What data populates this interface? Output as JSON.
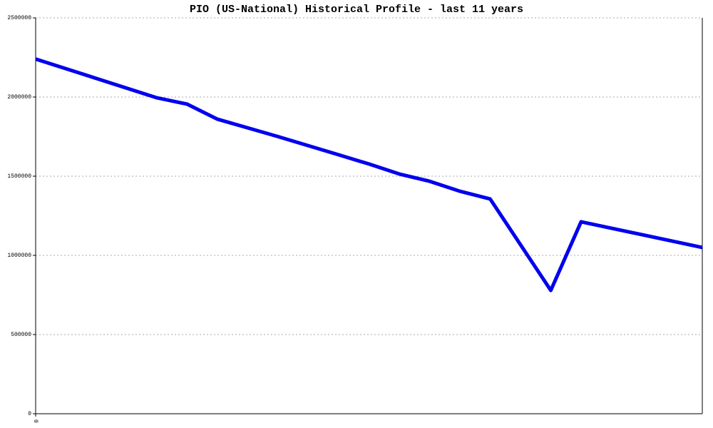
{
  "chart_data": {
    "type": "line",
    "title": "PIO (US-National) Historical Profile - last 11 years",
    "x": [
      0,
      24,
      30,
      36,
      48,
      60,
      66,
      72,
      78,
      84,
      90,
      102,
      108,
      132
    ],
    "xlim": [
      0,
      132
    ],
    "xticks": [
      0
    ],
    "series": [
      {
        "color": "#0000ee",
        "values": [
          2240000,
          1995000,
          1955000,
          1860000,
          1750000,
          1635000,
          1577000,
          1514000,
          1468000,
          1405000,
          1356000,
          779000,
          1212000,
          1050000
        ]
      }
    ],
    "ylim": [
      0,
      2500000
    ],
    "yticks": [
      0,
      500000,
      1000000,
      1500000,
      2000000,
      2500000
    ],
    "grid": true
  }
}
